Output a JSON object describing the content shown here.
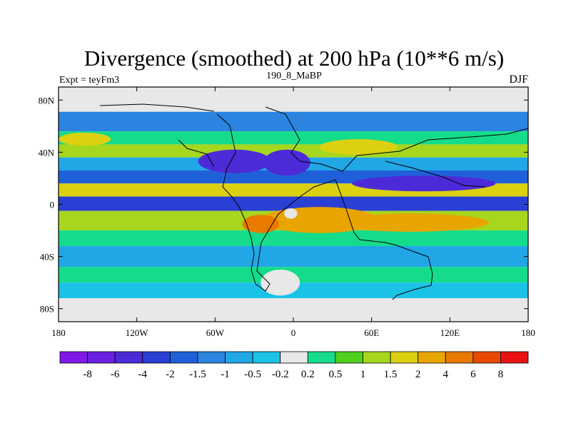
{
  "chart_data": {
    "type": "heatmap",
    "title": "Divergence (smoothed) at 200 hPa (10**6 m/s)",
    "left_string": "Expt = teyFm3",
    "center_string": "190_8_MaBP",
    "right_string": "DJF",
    "x_ticks": [
      {
        "value": -180,
        "label": "180"
      },
      {
        "value": -120,
        "label": "120W"
      },
      {
        "value": -60,
        "label": "60W"
      },
      {
        "value": 0,
        "label": "0"
      },
      {
        "value": 60,
        "label": "60E"
      },
      {
        "value": 120,
        "label": "120E"
      },
      {
        "value": 180,
        "label": "180"
      }
    ],
    "y_ticks": [
      {
        "value": 80,
        "label": "80N"
      },
      {
        "value": 40,
        "label": "40N"
      },
      {
        "value": 0,
        "label": "0"
      },
      {
        "value": -40,
        "label": "40S"
      },
      {
        "value": -80,
        "label": "80S"
      }
    ],
    "xlim": [
      -180,
      180
    ],
    "ylim": [
      -90,
      90
    ],
    "colorbar": {
      "colors": [
        "#7f1ae6",
        "#6a20e0",
        "#4d2ad8",
        "#2a3fd4",
        "#1f60d8",
        "#2a84e0",
        "#21a6e6",
        "#1ac2e6",
        "#e8e8e8",
        "#14dc8a",
        "#50d01e",
        "#a6d61e",
        "#dcd010",
        "#e8a500",
        "#e87a00",
        "#e84a00",
        "#e81414"
      ],
      "labels": [
        "-8",
        "-6",
        "-4",
        "-2",
        "-1.5",
        "-1",
        "-0.5",
        "-0.2",
        "0.2",
        "0.5",
        "1",
        "1.5",
        "2",
        "4",
        "6",
        "8"
      ]
    },
    "field_bands": [
      {
        "lat": [
          71,
          90
        ],
        "lon": [
          -180,
          180
        ],
        "class": "0",
        "color": "#e8e8e8"
      },
      {
        "lat": [
          56,
          71
        ],
        "lon": [
          -180,
          180
        ],
        "class": "-1",
        "color": "#2a84e0"
      },
      {
        "lat": [
          46,
          56
        ],
        "lon": [
          -180,
          180
        ],
        "class": "0.5",
        "color": "#14dc8a"
      },
      {
        "lat": [
          36,
          46
        ],
        "lon": [
          -180,
          180
        ],
        "class": "1.5",
        "color": "#a6d61e"
      },
      {
        "lat": [
          26,
          36
        ],
        "lon": [
          -180,
          180
        ],
        "class": "-0.5",
        "color": "#21a6e6"
      },
      {
        "lat": [
          16,
          26
        ],
        "lon": [
          -180,
          180
        ],
        "class": "-1.5",
        "color": "#1f60d8"
      },
      {
        "lat": [
          6,
          16
        ],
        "lon": [
          -180,
          180
        ],
        "class": "2",
        "color": "#dcd010"
      },
      {
        "lat": [
          -5,
          6
        ],
        "lon": [
          -180,
          180
        ],
        "class": "-2",
        "color": "#2a3fd4"
      },
      {
        "lat": [
          -20,
          -5
        ],
        "lon": [
          -180,
          180
        ],
        "class": "1.5",
        "color": "#a6d61e"
      },
      {
        "lat": [
          -32,
          -20
        ],
        "lon": [
          -180,
          180
        ],
        "class": "0.5",
        "color": "#14dc8a"
      },
      {
        "lat": [
          -48,
          -32
        ],
        "lon": [
          -180,
          180
        ],
        "class": "-0.5",
        "color": "#21a6e6"
      },
      {
        "lat": [
          -60,
          -48
        ],
        "lon": [
          -180,
          180
        ],
        "class": "0.5",
        "color": "#14dc8a"
      },
      {
        "lat": [
          -72,
          -60
        ],
        "lon": [
          -180,
          180
        ],
        "class": "-0.2",
        "color": "#1ac2e6"
      },
      {
        "lat": [
          -90,
          -72
        ],
        "lon": [
          -180,
          180
        ],
        "class": "0",
        "color": "#e8e8e8"
      }
    ],
    "field_features": [
      {
        "shape": "ellipse",
        "lon": -45,
        "lat": 33,
        "rlon": 28,
        "rlat": 9,
        "class": "-4",
        "color": "#4d2ad8"
      },
      {
        "shape": "ellipse",
        "lon": -5,
        "lat": 32,
        "rlon": 18,
        "rlat": 10,
        "class": "-4",
        "color": "#4d2ad8"
      },
      {
        "shape": "ellipse",
        "lon": 100,
        "lat": 16,
        "rlon": 55,
        "rlat": 6,
        "class": "-4",
        "color": "#4d2ad8"
      },
      {
        "shape": "ellipse",
        "lon": 20,
        "lat": -12,
        "rlon": 45,
        "rlat": 10,
        "class": "4",
        "color": "#e8a500"
      },
      {
        "shape": "ellipse",
        "lon": -25,
        "lat": -15,
        "rlon": 14,
        "rlat": 7,
        "class": "6",
        "color": "#e87a00"
      },
      {
        "shape": "ellipse",
        "lon": 90,
        "lat": -14,
        "rlon": 60,
        "rlat": 7,
        "class": "4",
        "color": "#e8a500"
      },
      {
        "shape": "ellipse",
        "lon": -2,
        "lat": -7,
        "rlon": 5,
        "rlat": 4,
        "class": "0",
        "color": "#e8e8e8"
      },
      {
        "shape": "ellipse",
        "lon": 50,
        "lat": 44,
        "rlon": 30,
        "rlat": 6,
        "class": "2",
        "color": "#dcd010"
      },
      {
        "shape": "ellipse",
        "lon": -160,
        "lat": 50,
        "rlon": 20,
        "rlat": 5,
        "class": "2",
        "color": "#dcd010"
      },
      {
        "shape": "ellipse",
        "lon": -10,
        "lat": -60,
        "rlon": 15,
        "rlat": 10,
        "class": "0",
        "color": "#e8e8e8"
      }
    ]
  }
}
